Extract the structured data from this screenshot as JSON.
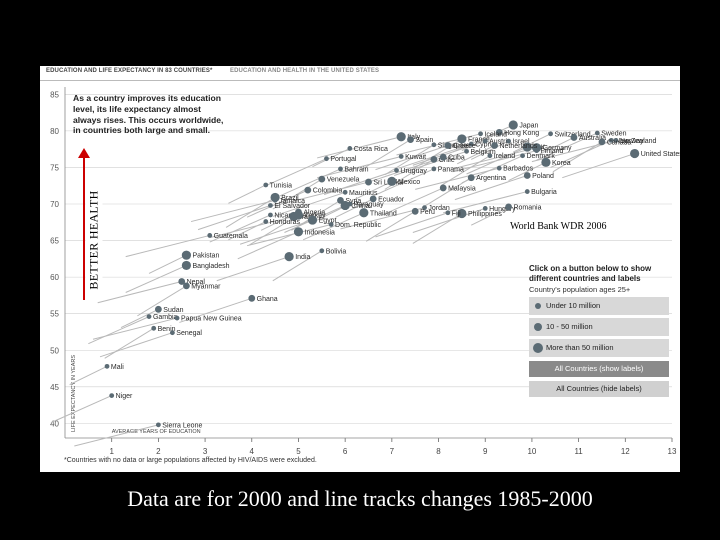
{
  "tabs": [
    "EDUCATION AND LIFE EXPECTANCY IN 83 COUNTRIES*",
    "EDUCATION AND HEALTH IN THE UNITED STATES"
  ],
  "intro_lines": [
    "As a country improves its education",
    "level, its life expectancy almost",
    "always rises. This occurs worldwide,",
    "in countries both large and small."
  ],
  "source_note": "World Bank WDR  2006",
  "health_label": "BETTER HEALTH",
  "caption": "Data are for 2000 and line tracks changes 1985-2000",
  "footnote": "*Countries with no data or large populations affected by HIV/AIDS were excluded.",
  "legend": {
    "title_line1": "Click on a button below to show",
    "title_line2": "different countries and labels",
    "subtitle": "Country's population ages 25+",
    "sizes": [
      "Under 10 million",
      "10 - 50 million",
      "More than 50 million"
    ],
    "btn_show": "All Countries (show labels)",
    "btn_hide": "All Countries (hide labels)"
  },
  "colors": {
    "dot": "#5b6b74",
    "trail": "#b9b9b9",
    "arrow": "#cc0000",
    "grid": "#cfcfcf"
  },
  "chart_data": {
    "type": "scatter",
    "title": "Education and life expectancy in 83 countries",
    "xlabel": "AVERAGE YEARS OF EDUCATION",
    "ylabel": "LIFE EXPECTANCY IN YEARS",
    "xlim": [
      0,
      13
    ],
    "ylim": [
      38,
      86
    ],
    "xticks": [
      1,
      2,
      3,
      4,
      5,
      6,
      7,
      8,
      9,
      10,
      11,
      12,
      13
    ],
    "yticks": [
      40,
      45,
      50,
      55,
      60,
      65,
      70,
      75,
      80,
      85
    ],
    "points": [
      {
        "name": "Hong Kong",
        "x": 9.3,
        "y": 79.8,
        "size": "mid"
      },
      {
        "name": "Japan",
        "x": 9.6,
        "y": 80.8,
        "size": "large"
      },
      {
        "name": "Iceland",
        "x": 8.9,
        "y": 79.6,
        "size": "small"
      },
      {
        "name": "Singapore",
        "x": 7.9,
        "y": 78.1,
        "size": "small"
      },
      {
        "name": "Cyprus",
        "x": 8.7,
        "y": 78.2,
        "size": "small"
      },
      {
        "name": "Switzerland",
        "x": 10.4,
        "y": 79.6,
        "size": "small"
      },
      {
        "name": "Sweden",
        "x": 11.4,
        "y": 79.7,
        "size": "small"
      },
      {
        "name": "Italy",
        "x": 7.2,
        "y": 79.2,
        "size": "large"
      },
      {
        "name": "France",
        "x": 8.5,
        "y": 78.9,
        "size": "large"
      },
      {
        "name": "Austria",
        "x": 9.0,
        "y": 78.6,
        "size": "small"
      },
      {
        "name": "Australia",
        "x": 10.9,
        "y": 79.1,
        "size": "mid"
      },
      {
        "name": "New Zealand",
        "x": 11.7,
        "y": 78.7,
        "size": "small"
      },
      {
        "name": "Norway",
        "x": 11.8,
        "y": 78.7,
        "size": "small"
      },
      {
        "name": "Spain",
        "x": 7.4,
        "y": 78.8,
        "size": "mid"
      },
      {
        "name": "Greece",
        "x": 8.2,
        "y": 78.0,
        "size": "mid"
      },
      {
        "name": "Israel",
        "x": 9.5,
        "y": 78.6,
        "size": "small"
      },
      {
        "name": "U.K.",
        "x": 9.9,
        "y": 77.8,
        "size": "large"
      },
      {
        "name": "Germany",
        "x": 10.1,
        "y": 77.7,
        "size": "large"
      },
      {
        "name": "Canada",
        "x": 11.5,
        "y": 78.5,
        "size": "mid"
      },
      {
        "name": "United States",
        "x": 12.2,
        "y": 76.9,
        "size": "large"
      },
      {
        "name": "Costa Rica",
        "x": 6.1,
        "y": 77.6,
        "size": "small"
      },
      {
        "name": "Portugal",
        "x": 5.6,
        "y": 76.2,
        "size": "small"
      },
      {
        "name": "Kuwait",
        "x": 7.2,
        "y": 76.5,
        "size": "small"
      },
      {
        "name": "Chile",
        "x": 7.9,
        "y": 76.1,
        "size": "mid"
      },
      {
        "name": "Belgium",
        "x": 8.6,
        "y": 77.2,
        "size": "small"
      },
      {
        "name": "Netherlands",
        "x": 9.2,
        "y": 78.0,
        "size": "mid"
      },
      {
        "name": "Denmark",
        "x": 9.8,
        "y": 76.6,
        "size": "small"
      },
      {
        "name": "Finland",
        "x": 10.1,
        "y": 77.3,
        "size": "small"
      },
      {
        "name": "Ireland",
        "x": 9.1,
        "y": 76.6,
        "size": "small"
      },
      {
        "name": "Cuba",
        "x": 8.1,
        "y": 76.4,
        "size": "mid"
      },
      {
        "name": "Korea",
        "x": 10.3,
        "y": 75.7,
        "size": "large"
      },
      {
        "name": "Bahrain",
        "x": 5.9,
        "y": 74.8,
        "size": "small"
      },
      {
        "name": "Sri Lanka",
        "x": 6.5,
        "y": 73.0,
        "size": "mid"
      },
      {
        "name": "Venezuela",
        "x": 5.5,
        "y": 73.4,
        "size": "mid"
      },
      {
        "name": "Uruguay",
        "x": 7.1,
        "y": 74.6,
        "size": "small"
      },
      {
        "name": "Mexico",
        "x": 7.0,
        "y": 73.1,
        "size": "large"
      },
      {
        "name": "Panama",
        "x": 7.9,
        "y": 74.8,
        "size": "small"
      },
      {
        "name": "Barbados",
        "x": 9.3,
        "y": 74.9,
        "size": "small"
      },
      {
        "name": "Argentina",
        "x": 8.7,
        "y": 73.6,
        "size": "mid"
      },
      {
        "name": "Poland",
        "x": 9.9,
        "y": 73.9,
        "size": "mid"
      },
      {
        "name": "Tunisia",
        "x": 4.3,
        "y": 72.6,
        "size": "small"
      },
      {
        "name": "Colombia",
        "x": 5.2,
        "y": 71.9,
        "size": "mid"
      },
      {
        "name": "Jamaica",
        "x": 4.5,
        "y": 70.5,
        "size": "small"
      },
      {
        "name": "Syria",
        "x": 5.9,
        "y": 70.5,
        "size": "mid"
      },
      {
        "name": "Mauritius",
        "x": 6.0,
        "y": 71.6,
        "size": "small"
      },
      {
        "name": "Ecuador",
        "x": 6.6,
        "y": 70.7,
        "size": "mid"
      },
      {
        "name": "Malaysia",
        "x": 8.1,
        "y": 72.2,
        "size": "mid"
      },
      {
        "name": "Bulgaria",
        "x": 9.9,
        "y": 71.7,
        "size": "small"
      },
      {
        "name": "Brazil",
        "x": 4.5,
        "y": 70.9,
        "size": "large"
      },
      {
        "name": "El Salvador",
        "x": 4.4,
        "y": 69.8,
        "size": "small"
      },
      {
        "name": "Algeria",
        "x": 5.0,
        "y": 68.9,
        "size": "mid"
      },
      {
        "name": "China",
        "x": 6.0,
        "y": 69.8,
        "size": "large"
      },
      {
        "name": "Jordan",
        "x": 7.7,
        "y": 69.5,
        "size": "small"
      },
      {
        "name": "Philippines",
        "x": 8.5,
        "y": 68.7,
        "size": "large"
      },
      {
        "name": "Hungary",
        "x": 9.0,
        "y": 69.4,
        "size": "small"
      },
      {
        "name": "Romania",
        "x": 9.5,
        "y": 69.6,
        "size": "mid"
      },
      {
        "name": "Nicaragua",
        "x": 4.4,
        "y": 68.5,
        "size": "small"
      },
      {
        "name": "Iran",
        "x": 4.9,
        "y": 68.3,
        "size": "large"
      },
      {
        "name": "Turkey",
        "x": 5.0,
        "y": 68.5,
        "size": "large"
      },
      {
        "name": "Egypt",
        "x": 5.3,
        "y": 67.8,
        "size": "large"
      },
      {
        "name": "Paraguay",
        "x": 6.1,
        "y": 70.0,
        "size": "small"
      },
      {
        "name": "Thailand",
        "x": 6.4,
        "y": 68.8,
        "size": "large"
      },
      {
        "name": "Dom. Republic",
        "x": 5.7,
        "y": 67.2,
        "size": "small"
      },
      {
        "name": "Peru",
        "x": 7.5,
        "y": 69.0,
        "size": "mid"
      },
      {
        "name": "Fiji",
        "x": 8.2,
        "y": 68.8,
        "size": "small"
      },
      {
        "name": "Honduras",
        "x": 4.3,
        "y": 67.6,
        "size": "small"
      },
      {
        "name": "Indonesia",
        "x": 5.0,
        "y": 66.2,
        "size": "large"
      },
      {
        "name": "Guatemala",
        "x": 3.1,
        "y": 65.7,
        "size": "small"
      },
      {
        "name": "Bolivia",
        "x": 5.5,
        "y": 63.6,
        "size": "small"
      },
      {
        "name": "India",
        "x": 4.8,
        "y": 62.8,
        "size": "large"
      },
      {
        "name": "Pakistan",
        "x": 2.6,
        "y": 63.0,
        "size": "large"
      },
      {
        "name": "Bangladesh",
        "x": 2.6,
        "y": 61.6,
        "size": "large"
      },
      {
        "name": "Nepal",
        "x": 2.5,
        "y": 59.4,
        "size": "mid"
      },
      {
        "name": "Myanmar",
        "x": 2.6,
        "y": 58.8,
        "size": "mid"
      },
      {
        "name": "Ghana",
        "x": 4.0,
        "y": 57.1,
        "size": "mid"
      },
      {
        "name": "Sudan",
        "x": 2.0,
        "y": 55.6,
        "size": "mid"
      },
      {
        "name": "Gambia",
        "x": 1.8,
        "y": 54.6,
        "size": "small"
      },
      {
        "name": "Papua New Guinea",
        "x": 2.4,
        "y": 54.4,
        "size": "small"
      },
      {
        "name": "Benin",
        "x": 1.9,
        "y": 53.0,
        "size": "small"
      },
      {
        "name": "Senegal",
        "x": 2.3,
        "y": 52.4,
        "size": "small"
      },
      {
        "name": "Mali",
        "x": 0.9,
        "y": 47.8,
        "size": "small"
      },
      {
        "name": "Niger",
        "x": 1.0,
        "y": 43.8,
        "size": "small"
      },
      {
        "name": "Sierra Leone",
        "x": 2.0,
        "y": 39.8,
        "size": "small"
      }
    ]
  }
}
